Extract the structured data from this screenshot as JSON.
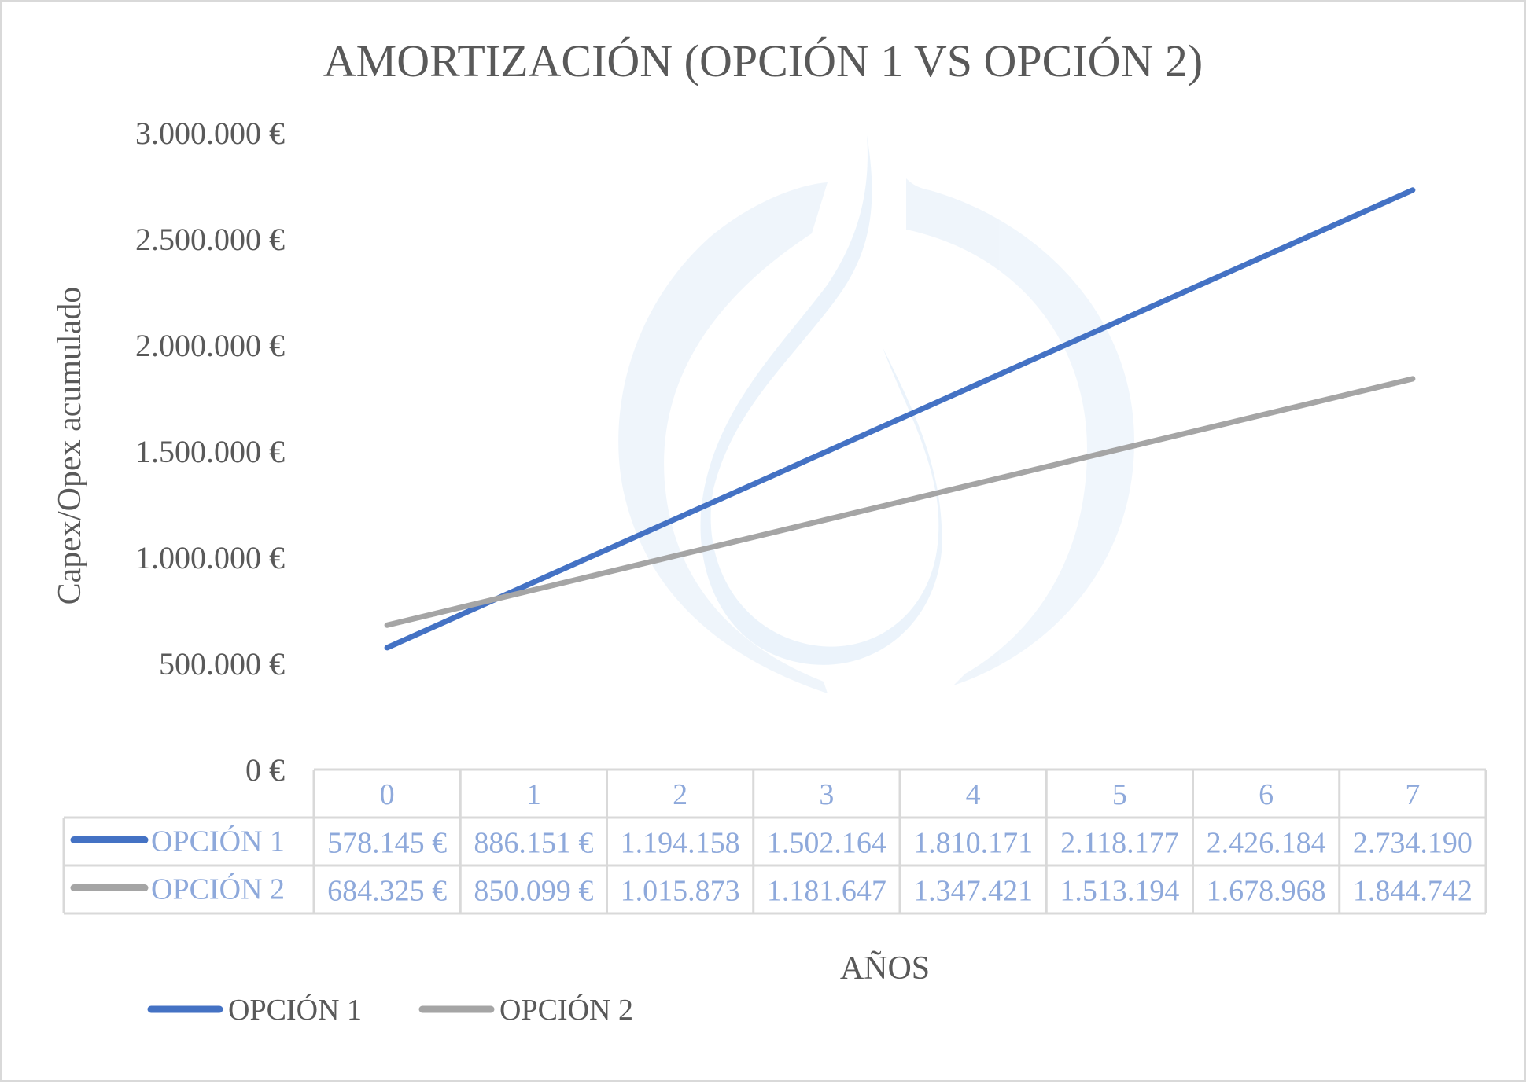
{
  "chart_data": {
    "type": "line",
    "title": "AMORTIZACIÓN (OPCIÓN 1 VS OPCIÓN 2)",
    "xlabel": "AÑOS",
    "ylabel": "Capex/Opex acumulado",
    "categories": [
      "0",
      "1",
      "2",
      "3",
      "4",
      "5",
      "6",
      "7"
    ],
    "ylim": [
      0,
      3000000
    ],
    "yticks": [
      {
        "value": 0,
        "label": "0 €"
      },
      {
        "value": 500000,
        "label": "500.000 €"
      },
      {
        "value": 1000000,
        "label": "1.000.000 €"
      },
      {
        "value": 1500000,
        "label": "1.500.000 €"
      },
      {
        "value": 2000000,
        "label": "2.000.000 €"
      },
      {
        "value": 2500000,
        "label": "2.500.000 €"
      },
      {
        "value": 3000000,
        "label": "3.000.000 €"
      }
    ],
    "grid": false,
    "legend": "bottom-left",
    "data_table": true,
    "series": [
      {
        "name": "OPCIÓN 1",
        "color": "#4472c4",
        "values": [
          578145,
          886151,
          1194158,
          1502164,
          1810171,
          2118177,
          2426184,
          2734190
        ],
        "labels": [
          "578.145 €",
          "886.151 €",
          "1.194.158",
          "1.502.164",
          "1.810.171",
          "2.118.177",
          "2.426.184",
          "2.734.190"
        ]
      },
      {
        "name": "OPCIÓN 2",
        "color": "#a5a5a5",
        "values": [
          684325,
          850099,
          1015873,
          1181647,
          1347421,
          1513194,
          1678968,
          1844742
        ],
        "labels": [
          "684.325 €",
          "850.099 €",
          "1.015.873",
          "1.181.647",
          "1.347.421",
          "1.513.194",
          "1.678.968",
          "1.844.742"
        ]
      }
    ]
  },
  "colors": {
    "text": "#595959",
    "table_text": "#8ea9db",
    "table_border": "#d9d9d9",
    "watermark": "#e8f1fa"
  },
  "watermark_icon": "water-drop-logo-icon"
}
